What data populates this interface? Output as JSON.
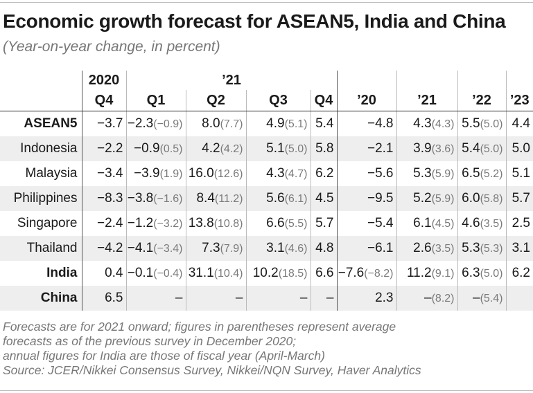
{
  "title": "Economic growth forecast for ASEAN5, India and China",
  "subtitle": "(Year-on-year change, in percent)",
  "header": {
    "year_2020": "2020",
    "year_21": "’21",
    "quarters": [
      "Q4",
      "Q1",
      "Q2",
      "Q3",
      "Q4"
    ],
    "annual": [
      "’20",
      "’21",
      "’22",
      "’23"
    ]
  },
  "rows": [
    {
      "label": "ASEAN5",
      "bold": true,
      "cells": [
        {
          "v": "−3.7",
          "p": ""
        },
        {
          "v": "−2.3",
          "p": "(−0.9)"
        },
        {
          "v": "8.0",
          "p": "(7.7)"
        },
        {
          "v": "4.9",
          "p": "(5.1)"
        },
        {
          "v": "5.4",
          "p": ""
        },
        {
          "v": "−4.8",
          "p": ""
        },
        {
          "v": "4.3",
          "p": "(4.3)"
        },
        {
          "v": "5.5",
          "p": "(5.0)"
        },
        {
          "v": "4.4",
          "p": ""
        }
      ]
    },
    {
      "label": "Indonesia",
      "bold": false,
      "cells": [
        {
          "v": "−2.2",
          "p": ""
        },
        {
          "v": "−0.9",
          "p": "(0.5)"
        },
        {
          "v": "4.2",
          "p": "(4.2)"
        },
        {
          "v": "5.1",
          "p": "(5.0)"
        },
        {
          "v": "5.8",
          "p": ""
        },
        {
          "v": "−2.1",
          "p": ""
        },
        {
          "v": "3.9",
          "p": "(3.6)"
        },
        {
          "v": "5.4",
          "p": "(5.0)"
        },
        {
          "v": "5.0",
          "p": ""
        }
      ]
    },
    {
      "label": "Malaysia",
      "bold": false,
      "cells": [
        {
          "v": "−3.4",
          "p": ""
        },
        {
          "v": "−3.9",
          "p": "(1.9)"
        },
        {
          "v": "16.0",
          "p": "(12.6)"
        },
        {
          "v": "4.3",
          "p": "(4.7)"
        },
        {
          "v": "6.2",
          "p": ""
        },
        {
          "v": "−5.6",
          "p": ""
        },
        {
          "v": "5.3",
          "p": "(5.9)"
        },
        {
          "v": "6.5",
          "p": "(5.2)"
        },
        {
          "v": "5.1",
          "p": ""
        }
      ]
    },
    {
      "label": "Philippines",
      "bold": false,
      "cells": [
        {
          "v": "−8.3",
          "p": ""
        },
        {
          "v": "−3.8",
          "p": "(−1.6)"
        },
        {
          "v": "8.4",
          "p": "(11.2)"
        },
        {
          "v": "5.6",
          "p": "(6.1)"
        },
        {
          "v": "4.5",
          "p": ""
        },
        {
          "v": "−9.5",
          "p": ""
        },
        {
          "v": "5.2",
          "p": "(5.9)"
        },
        {
          "v": "6.0",
          "p": "(5.8)"
        },
        {
          "v": "5.7",
          "p": ""
        }
      ]
    },
    {
      "label": "Singapore",
      "bold": false,
      "cells": [
        {
          "v": "−2.4",
          "p": ""
        },
        {
          "v": "−1.2",
          "p": "(−3.2)"
        },
        {
          "v": "13.8",
          "p": "(10.8)"
        },
        {
          "v": "6.6",
          "p": "(5.5)"
        },
        {
          "v": "5.7",
          "p": ""
        },
        {
          "v": "−5.4",
          "p": ""
        },
        {
          "v": "6.1",
          "p": "(4.5)"
        },
        {
          "v": "4.6",
          "p": "(3.5)"
        },
        {
          "v": "2.5",
          "p": ""
        }
      ]
    },
    {
      "label": "Thailand",
      "bold": false,
      "cells": [
        {
          "v": "−4.2",
          "p": ""
        },
        {
          "v": "−4.1",
          "p": "(−3.4)"
        },
        {
          "v": "7.3",
          "p": "(7.9)"
        },
        {
          "v": "3.1",
          "p": "(4.6)"
        },
        {
          "v": "4.8",
          "p": ""
        },
        {
          "v": "−6.1",
          "p": ""
        },
        {
          "v": "2.6",
          "p": "(3.5)"
        },
        {
          "v": "5.3",
          "p": "(5.3)"
        },
        {
          "v": "3.1",
          "p": ""
        }
      ]
    },
    {
      "label": "India",
      "bold": true,
      "cells": [
        {
          "v": "0.4",
          "p": ""
        },
        {
          "v": "−0.1",
          "p": "(−0.4)"
        },
        {
          "v": "31.1",
          "p": "(10.4)"
        },
        {
          "v": "10.2",
          "p": "(18.5)"
        },
        {
          "v": "6.6",
          "p": ""
        },
        {
          "v": "−7.6",
          "p": "(−8.2)"
        },
        {
          "v": "11.2",
          "p": "(9.1)"
        },
        {
          "v": "6.3",
          "p": "(5.0)"
        },
        {
          "v": "6.2",
          "p": ""
        }
      ]
    },
    {
      "label": "China",
      "bold": true,
      "cells": [
        {
          "v": "6.5",
          "p": ""
        },
        {
          "v": "–",
          "p": ""
        },
        {
          "v": "–",
          "p": ""
        },
        {
          "v": "–",
          "p": ""
        },
        {
          "v": "–",
          "p": ""
        },
        {
          "v": "2.3",
          "p": ""
        },
        {
          "v": "–",
          "p": "(8.2)"
        },
        {
          "v": "–",
          "p": "(5.4)"
        },
        {
          "v": "",
          "p": ""
        }
      ]
    }
  ],
  "footnotes": [
    "Forecasts are for 2021 onward; figures in parentheses represent average",
    "forecasts as of the previous survey in December 2020;",
    "annual figures for India are those of fiscal year (April-March)",
    "Source: JCER/Nikkei Consensus Survey, Nikkei/NQN Survey, Haver Analytics"
  ],
  "chart_data": {
    "type": "table",
    "title": "Economic growth forecast for ASEAN5, India and China",
    "subtitle": "(Year-on-year change, in percent)",
    "columns": [
      "2020 Q4",
      "’21 Q1",
      "’21 Q2",
      "’21 Q3",
      "’21 Q4",
      "’20",
      "’21",
      "’22",
      "’23"
    ],
    "row_labels": [
      "ASEAN5",
      "Indonesia",
      "Malaysia",
      "Philippines",
      "Singapore",
      "Thailand",
      "India",
      "China"
    ],
    "values": [
      [
        -3.7,
        -2.3,
        8.0,
        4.9,
        5.4,
        -4.8,
        4.3,
        5.5,
        4.4
      ],
      [
        -2.2,
        -0.9,
        4.2,
        5.1,
        5.8,
        -2.1,
        3.9,
        5.4,
        5.0
      ],
      [
        -3.4,
        -3.9,
        16.0,
        4.3,
        6.2,
        -5.6,
        5.3,
        6.5,
        5.1
      ],
      [
        -8.3,
        -3.8,
        8.4,
        5.6,
        4.5,
        -9.5,
        5.2,
        6.0,
        5.7
      ],
      [
        -2.4,
        -1.2,
        13.8,
        6.6,
        5.7,
        -5.4,
        6.1,
        4.6,
        2.5
      ],
      [
        -4.2,
        -4.1,
        7.3,
        3.1,
        4.8,
        -6.1,
        2.6,
        5.3,
        3.1
      ],
      [
        0.4,
        -0.1,
        31.1,
        10.2,
        6.6,
        -7.6,
        11.2,
        6.3,
        6.2
      ],
      [
        6.5,
        null,
        null,
        null,
        null,
        2.3,
        null,
        null,
        null
      ]
    ],
    "previous_survey": [
      [
        null,
        -0.9,
        7.7,
        5.1,
        null,
        null,
        4.3,
        5.0,
        null
      ],
      [
        null,
        0.5,
        4.2,
        5.0,
        null,
        null,
        3.6,
        5.0,
        null
      ],
      [
        null,
        1.9,
        12.6,
        4.7,
        null,
        null,
        5.9,
        5.2,
        null
      ],
      [
        null,
        -1.6,
        11.2,
        6.1,
        null,
        null,
        5.9,
        5.8,
        null
      ],
      [
        null,
        -3.2,
        10.8,
        5.5,
        null,
        null,
        4.5,
        3.5,
        null
      ],
      [
        null,
        -3.4,
        7.9,
        4.6,
        null,
        null,
        3.5,
        5.3,
        null
      ],
      [
        null,
        -0.4,
        10.4,
        18.5,
        null,
        -8.2,
        9.1,
        5.0,
        null
      ],
      [
        null,
        null,
        null,
        null,
        null,
        null,
        8.2,
        5.4,
        null
      ]
    ]
  }
}
